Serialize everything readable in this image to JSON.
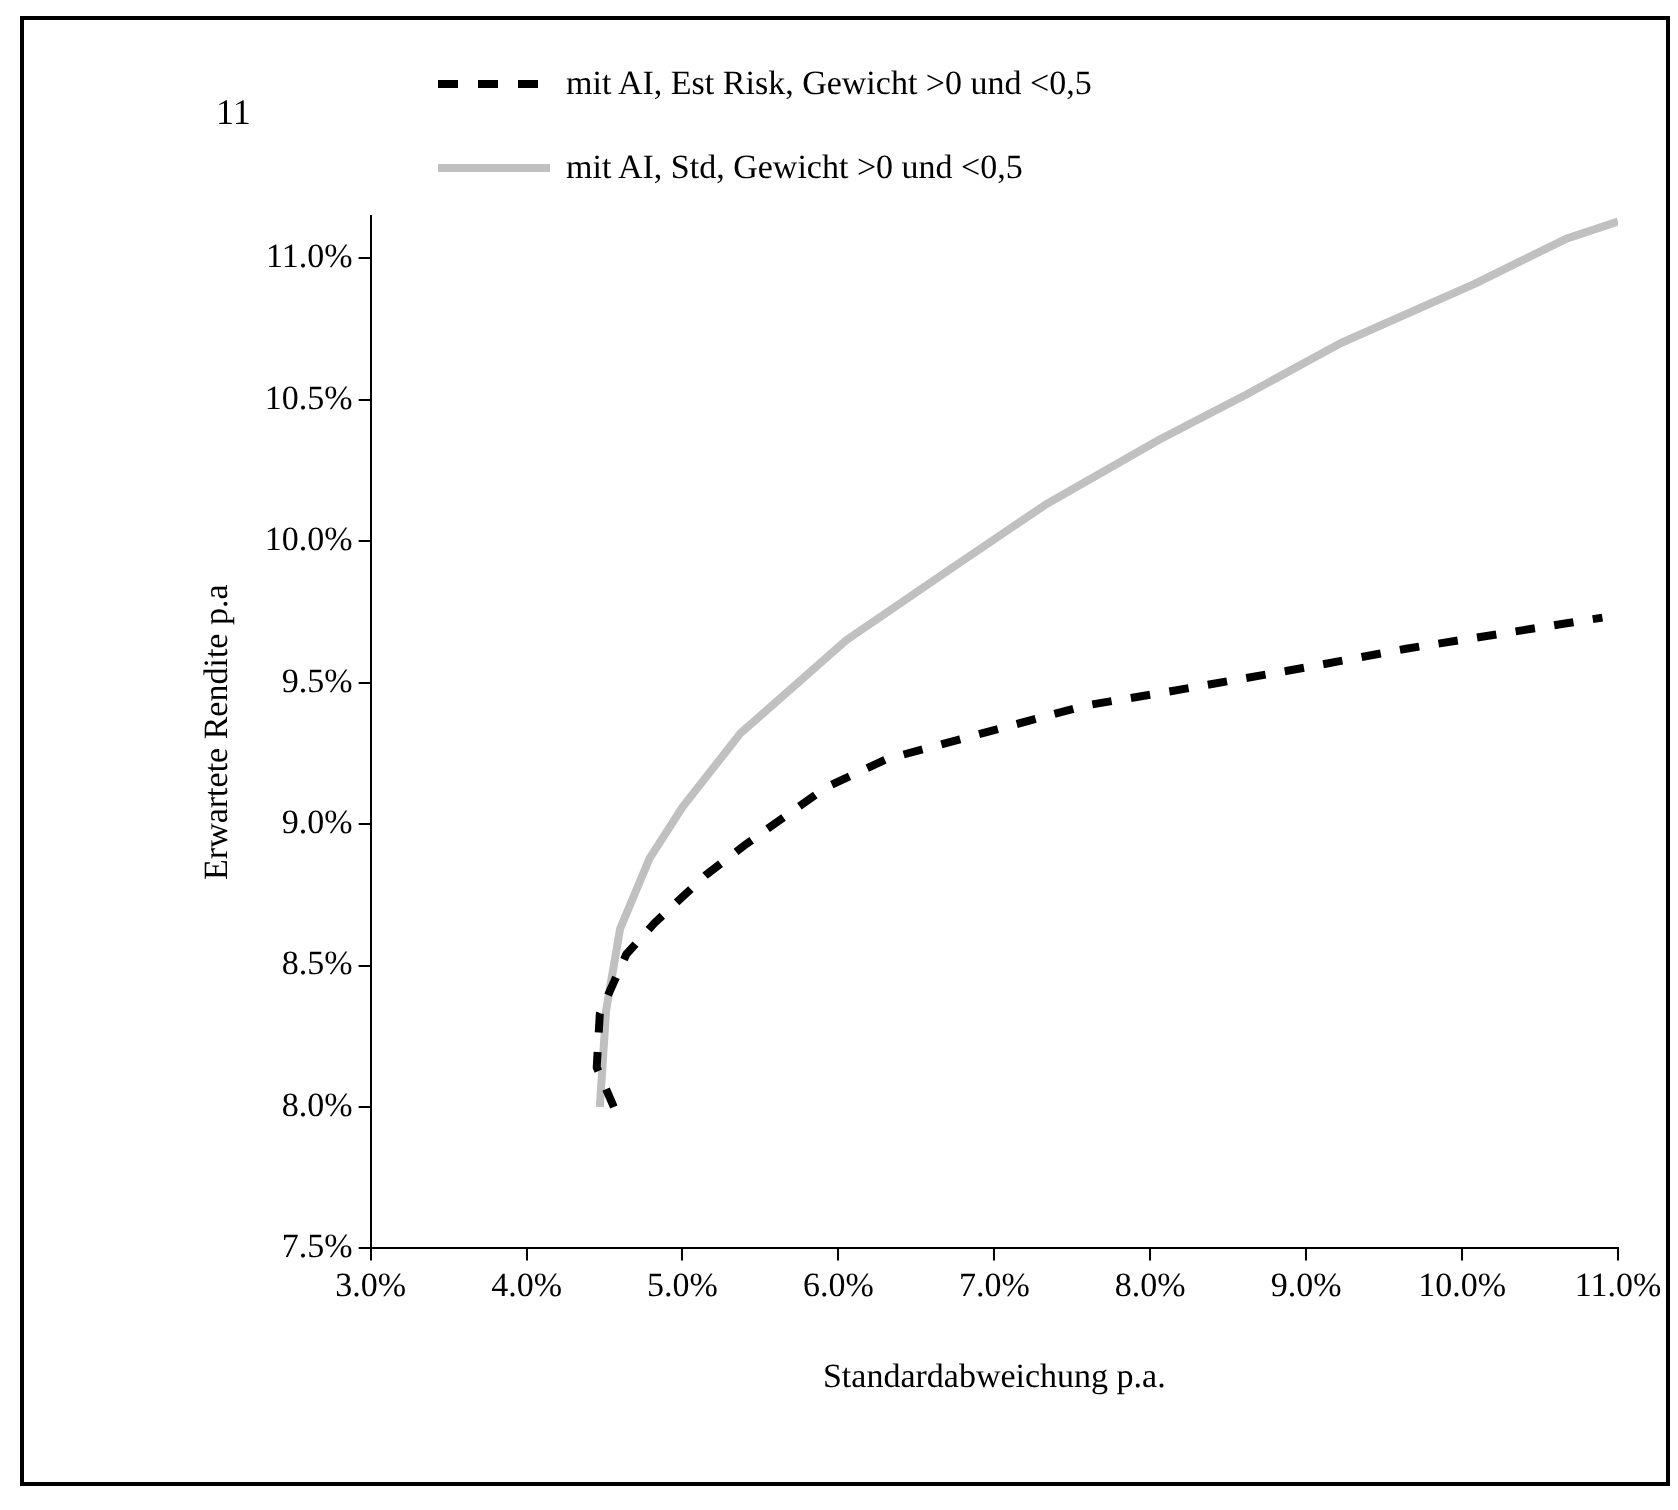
{
  "chart_data": {
    "type": "line",
    "xlabel": "Standardabweichung p.a.",
    "ylabel": "Erwartete Rendite p.a",
    "annotations": [
      "11"
    ],
    "xlim": [
      3.0,
      11.0
    ],
    "xticks": [
      {
        "value": 3,
        "label": "3.0%"
      },
      {
        "value": 4,
        "label": "4.0%"
      },
      {
        "value": 5,
        "label": "5.0%"
      },
      {
        "value": 6,
        "label": "6.0%"
      },
      {
        "value": 7,
        "label": "7.0%"
      },
      {
        "value": 8,
        "label": "8.0%"
      },
      {
        "value": 9,
        "label": "9.0%"
      },
      {
        "value": 10,
        "label": "10.0%"
      },
      {
        "value": 11,
        "label": "11.0%"
      }
    ],
    "ylim": [
      7.5,
      11.15
    ],
    "yticks": [
      {
        "value": 7.5,
        "label": "7.5%"
      },
      {
        "value": 8,
        "label": "8.0%"
      },
      {
        "value": 8.5,
        "label": "8.5%"
      },
      {
        "value": 9,
        "label": "9.0%"
      },
      {
        "value": 9.5,
        "label": "9.5%"
      },
      {
        "value": 10,
        "label": "10.0%"
      },
      {
        "value": 10.5,
        "label": "10.5%"
      },
      {
        "value": 11,
        "label": "11.0%"
      }
    ],
    "grid": false,
    "legend": "top left",
    "marker": "none",
    "series": [
      {
        "name": "mit AI, Est Risk, Gewicht >0 und <0,5",
        "color": "#000000",
        "line_style": "dashed",
        "x": [
          4.56,
          4.45,
          4.47,
          4.64,
          4.82,
          5.15,
          5.41,
          5.92,
          6.31,
          6.78,
          7.59,
          8.03,
          8.96,
          9.64,
          10.67,
          10.9
        ],
        "values": [
          8.0,
          8.14,
          8.33,
          8.54,
          8.65,
          8.82,
          8.93,
          9.13,
          9.23,
          9.3,
          9.42,
          9.46,
          9.55,
          9.62,
          9.71,
          9.73
        ]
      },
      {
        "name": "mit AI, Std, Gewicht >0 und <0,5",
        "color": "#c0c0c0",
        "line_style": "solid",
        "x": [
          4.47,
          4.51,
          4.6,
          4.79,
          5.0,
          5.37,
          6.05,
          6.74,
          7.33,
          8.06,
          8.62,
          9.22,
          10.08,
          10.67,
          11.0
        ],
        "values": [
          8.0,
          8.34,
          8.63,
          8.88,
          9.06,
          9.32,
          9.65,
          9.91,
          10.13,
          10.36,
          10.52,
          10.7,
          10.91,
          11.07,
          11.13
        ]
      }
    ]
  }
}
